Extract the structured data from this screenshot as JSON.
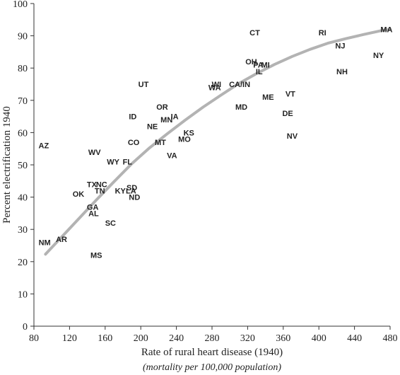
{
  "chart_data": {
    "type": "scatter",
    "xlabel": "Rate of rural heart disease (1940)",
    "xlabel_sub": "(mortality per 100,000 population)",
    "ylabel": "Percent electrification 1940",
    "xlim": [
      80,
      480
    ],
    "ylim": [
      0,
      100
    ],
    "x_ticks": [
      80,
      120,
      160,
      200,
      240,
      280,
      320,
      360,
      400,
      440,
      480
    ],
    "y_ticks": [
      0,
      10,
      20,
      30,
      40,
      50,
      60,
      70,
      80,
      90,
      100
    ],
    "grid": false,
    "colors": {
      "trend": "#b3b3b3",
      "axis": "#333333",
      "text": "#222222"
    },
    "points": [
      {
        "label": "AZ",
        "x": 91,
        "y": 56
      },
      {
        "label": "NM",
        "x": 92,
        "y": 26
      },
      {
        "label": "AR",
        "x": 111,
        "y": 27
      },
      {
        "label": "OK",
        "x": 130,
        "y": 41
      },
      {
        "label": "MS",
        "x": 150,
        "y": 22
      },
      {
        "label": "AL",
        "x": 147,
        "y": 35
      },
      {
        "label": "GA",
        "x": 146,
        "y": 37
      },
      {
        "label": "SC",
        "x": 166,
        "y": 32
      },
      {
        "label": "TX",
        "x": 145,
        "y": 44
      },
      {
        "label": "NC",
        "x": 156,
        "y": 44
      },
      {
        "label": "TN",
        "x": 154,
        "y": 42
      },
      {
        "label": "WV",
        "x": 148,
        "y": 54
      },
      {
        "label": "WY",
        "x": 169,
        "y": 51
      },
      {
        "label": "FL",
        "x": 185,
        "y": 51
      },
      {
        "label": "KY",
        "x": 177,
        "y": 42
      },
      {
        "label": "LA",
        "x": 189,
        "y": 42
      },
      {
        "label": "SD",
        "x": 190,
        "y": 43
      },
      {
        "label": "ND",
        "x": 193,
        "y": 40
      },
      {
        "label": "CO",
        "x": 192,
        "y": 57
      },
      {
        "label": "ID",
        "x": 191,
        "y": 65
      },
      {
        "label": "UT",
        "x": 203,
        "y": 75
      },
      {
        "label": "NE",
        "x": 213,
        "y": 62
      },
      {
        "label": "OR",
        "x": 224,
        "y": 68
      },
      {
        "label": "MN",
        "x": 229,
        "y": 64
      },
      {
        "label": "IA",
        "x": 238,
        "y": 65
      },
      {
        "label": "MT",
        "x": 222,
        "y": 57
      },
      {
        "label": "VA",
        "x": 235,
        "y": 53
      },
      {
        "label": "MO",
        "x": 249,
        "y": 58
      },
      {
        "label": "KS",
        "x": 254,
        "y": 60
      },
      {
        "label": "WI",
        "x": 285,
        "y": 75
      },
      {
        "label": "WA",
        "x": 283,
        "y": 74
      },
      {
        "label": "CA/IN",
        "x": 311,
        "y": 75
      },
      {
        "label": "MD",
        "x": 313,
        "y": 68
      },
      {
        "label": "CT",
        "x": 328,
        "y": 91
      },
      {
        "label": "OH",
        "x": 324,
        "y": 82
      },
      {
        "label": "PA",
        "x": 332,
        "y": 81
      },
      {
        "label": "MI",
        "x": 340,
        "y": 81
      },
      {
        "label": "IL",
        "x": 333,
        "y": 79
      },
      {
        "label": "ME",
        "x": 343,
        "y": 71
      },
      {
        "label": "VT",
        "x": 368,
        "y": 72
      },
      {
        "label": "DE",
        "x": 365,
        "y": 66
      },
      {
        "label": "NV",
        "x": 370,
        "y": 59
      },
      {
        "label": "RI",
        "x": 404,
        "y": 91
      },
      {
        "label": "NJ",
        "x": 424,
        "y": 87
      },
      {
        "label": "NH",
        "x": 426,
        "y": 79
      },
      {
        "label": "NY",
        "x": 467,
        "y": 84
      },
      {
        "label": "MA",
        "x": 476,
        "y": 92
      }
    ],
    "trend": {
      "x": [
        93,
        110,
        130,
        150,
        170,
        190,
        210,
        230,
        250,
        270,
        290,
        310,
        330,
        350,
        370,
        390,
        410,
        430,
        450,
        470,
        480
      ],
      "y": [
        22.3,
        27.3,
        33.2,
        39.1,
        44.8,
        50.4,
        55.3,
        59.7,
        63.9,
        67.9,
        71.6,
        75.2,
        78.3,
        81.1,
        83.6,
        85.8,
        87.7,
        89.1,
        90.4,
        91.6,
        92
      ]
    }
  }
}
